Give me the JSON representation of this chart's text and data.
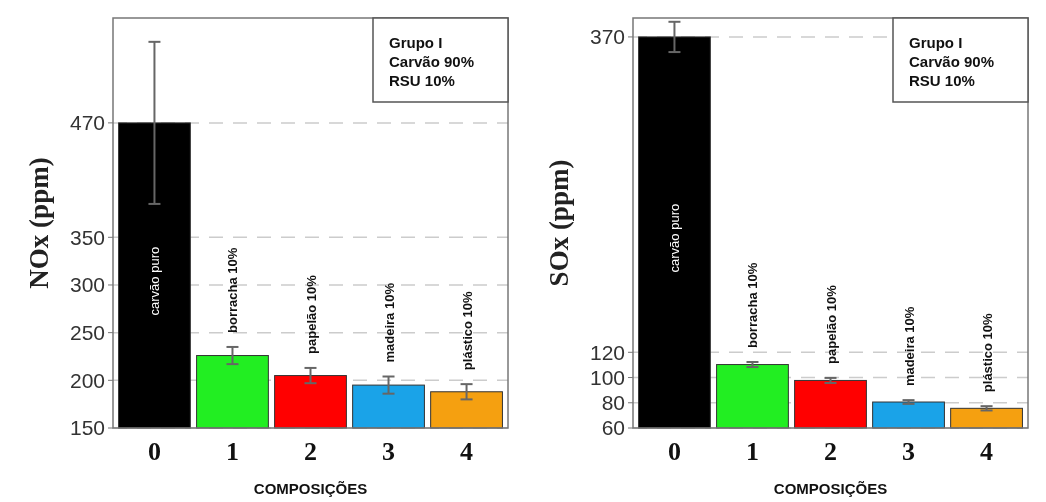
{
  "chart_data": [
    {
      "type": "bar",
      "ylabel": "NOx (ppm)",
      "xlabel": "COMPOSIÇÕES",
      "categories": [
        "0",
        "1",
        "2",
        "3",
        "4"
      ],
      "values": [
        470,
        226,
        205,
        195,
        188
      ],
      "errors": [
        85,
        9,
        8,
        9,
        8
      ],
      "colors": [
        "#000000",
        "#22ee22",
        "#ff0000",
        "#1aa3e8",
        "#f5a010"
      ],
      "ylim": [
        150,
        580
      ],
      "yticks": [
        150,
        200,
        250,
        300,
        350,
        470
      ],
      "grid": "y",
      "annotations": [
        "Grupo I\nCarvão 90%\nRSU 10%",
        "carvão puro",
        "borracha 10%",
        "papelão 10%",
        "madeira 10%",
        "plástico 10%"
      ]
    },
    {
      "type": "bar",
      "ylabel": "SOx (ppm)",
      "xlabel": "COMPOSIÇÕES",
      "categories": [
        "0",
        "1",
        "2",
        "3",
        "4"
      ],
      "values": [
        370,
        110.3,
        97.7,
        80.6,
        75.6
      ],
      "errors": [
        12,
        2,
        2,
        1.5,
        1.7
      ],
      "colors": [
        "#000000",
        "#22ee22",
        "#ff0000",
        "#1aa3e8",
        "#f5a010"
      ],
      "ylim": [
        60,
        385
      ],
      "yticks": [
        60,
        80,
        100,
        120,
        370
      ],
      "grid": "y",
      "annotations": [
        "Grupo I\nCarvão 90%\nRSU 10%",
        "carvão puro",
        "borracha 10%",
        "papelão 10%",
        "madeira 10%",
        "plástico 10%"
      ]
    }
  ]
}
